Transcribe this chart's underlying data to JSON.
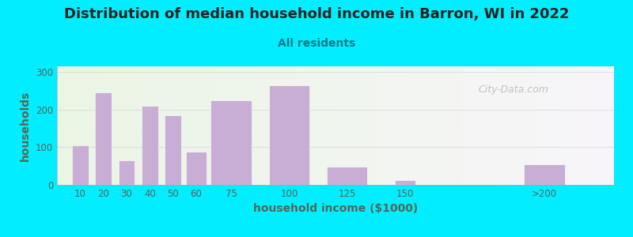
{
  "title": "Distribution of median household income in Barron, WI in 2022",
  "subtitle": "All residents",
  "xlabel": "household income ($1000)",
  "ylabel": "households",
  "bar_labels": [
    "10",
    "20",
    "30",
    "40",
    "50",
    "60",
    "75",
    "100",
    "125",
    "150",
    ">200"
  ],
  "bar_values": [
    105,
    245,
    65,
    210,
    185,
    88,
    225,
    265,
    48,
    12,
    55
  ],
  "bar_positions": [
    10,
    20,
    30,
    40,
    50,
    60,
    75,
    100,
    125,
    150,
    210
  ],
  "bar_widths": [
    8,
    8,
    8,
    8,
    8,
    10,
    20,
    20,
    20,
    10,
    20
  ],
  "bar_color": "#c8aed4",
  "ylim": [
    0,
    315
  ],
  "yticks": [
    0,
    100,
    200,
    300
  ],
  "xticks": [
    10,
    20,
    30,
    40,
    50,
    60,
    75,
    100,
    125,
    150,
    210
  ],
  "background_outer": "#00eeff",
  "background_inner_left": "#eaf5e4",
  "background_inner_right": "#f8f5fa",
  "title_fontsize": 13,
  "subtitle_fontsize": 10,
  "title_color": "#222222",
  "subtitle_color": "#007788",
  "axis_label_color": "#556655",
  "tick_label_color": "#556655",
  "watermark_text": "City-Data.com",
  "watermark_color": "#bbbbbb"
}
